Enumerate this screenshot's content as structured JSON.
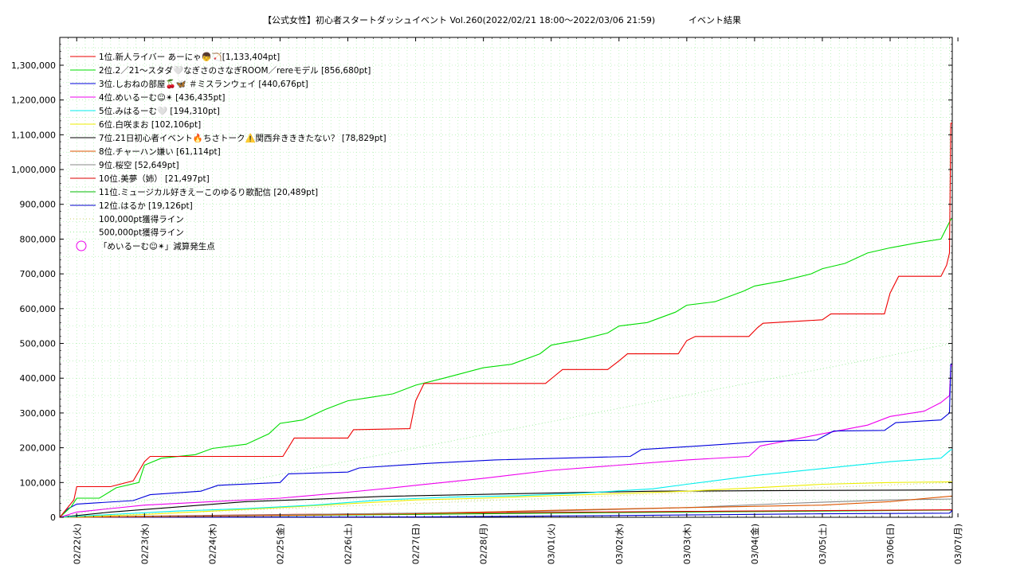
{
  "chart_data": {
    "type": "line",
    "title": "【公式女性】初心者スタートダッシュイベント Vol.260(2022/02/21 18:00～2022/03/06 21:59)",
    "subtitle": "イベント結果",
    "xlabel": "",
    "ylabel": "",
    "x_start": "2022-02-21 18:00",
    "x_end": "2022-03-06 22:00",
    "x_ticks": [
      "02/22(火)",
      "02/23(水)",
      "02/24(木)",
      "02/25(金)",
      "02/26(土)",
      "02/27(日)",
      "02/28(月)",
      "03/01(火)",
      "03/02(水)",
      "03/03(木)",
      "03/04(金)",
      "03/05(土)",
      "03/06(日)",
      "03/07(月)"
    ],
    "ylim": [
      0,
      1380000
    ],
    "y_ticks": [
      "0",
      "100,000",
      "200,000",
      "300,000",
      "400,000",
      "500,000",
      "600,000",
      "700,000",
      "800,000",
      "900,000",
      "1,000,000",
      "1,100,000",
      "1,200,000",
      "1,300,000"
    ],
    "y_tick_values": [
      0,
      100000,
      200000,
      300000,
      400000,
      500000,
      600000,
      700000,
      800000,
      900000,
      1000000,
      1100000,
      1200000,
      1300000
    ],
    "grid": true,
    "legend_position": "top-left",
    "series": [
      {
        "name": "1位.新人ライバー あーにゃ👦🏹[1,133,404pt]",
        "color": "#ee0000",
        "points": [
          [
            "2022-02-21 18:00",
            0
          ],
          [
            "2022-02-21 23:00",
            50000
          ],
          [
            "2022-02-22 00:00",
            88000
          ],
          [
            "2022-02-22 12:00",
            88000
          ],
          [
            "2022-02-22 20:00",
            105000
          ],
          [
            "2022-02-23 00:00",
            160000
          ],
          [
            "2022-02-23 02:00",
            175000
          ],
          [
            "2022-02-25 01:00",
            175000
          ],
          [
            "2022-02-25 05:00",
            228000
          ],
          [
            "2022-02-26 00:00",
            228000
          ],
          [
            "2022-02-26 02:00",
            252000
          ],
          [
            "2022-02-26 22:00",
            255000
          ],
          [
            "2022-02-27 00:00",
            335000
          ],
          [
            "2022-02-27 03:00",
            385000
          ],
          [
            "2022-02-28 22:00",
            385000
          ],
          [
            "2022-03-01 01:00",
            405000
          ],
          [
            "2022-03-01 04:00",
            425000
          ],
          [
            "2022-03-01 20:00",
            425000
          ],
          [
            "2022-03-02 00:00",
            450000
          ],
          [
            "2022-03-02 03:00",
            470000
          ],
          [
            "2022-03-02 21:00",
            470000
          ],
          [
            "2022-03-03 00:00",
            508000
          ],
          [
            "2022-03-03 03:00",
            520000
          ],
          [
            "2022-03-03 22:00",
            520000
          ],
          [
            "2022-03-04 01:00",
            545000
          ],
          [
            "2022-03-04 03:00",
            558000
          ],
          [
            "2022-03-05 00:00",
            568000
          ],
          [
            "2022-03-05 03:00",
            585000
          ],
          [
            "2022-03-05 22:00",
            585000
          ],
          [
            "2022-03-06 00:00",
            645000
          ],
          [
            "2022-03-06 03:00",
            693000
          ],
          [
            "2022-03-06 18:00",
            693000
          ],
          [
            "2022-03-06 20:00",
            725000
          ],
          [
            "2022-03-06 21:00",
            760000
          ],
          [
            "2022-03-06 21:30",
            1133404
          ],
          [
            "2022-03-06 22:00",
            1133404
          ]
        ]
      },
      {
        "name": "2位.2／21〜スタダ🤍なぎさのさなぎROOM／rereモデル [856,680pt]",
        "color": "#00dd00",
        "points": [
          [
            "2022-02-21 18:00",
            0
          ],
          [
            "2022-02-21 22:00",
            30000
          ],
          [
            "2022-02-22 00:00",
            55000
          ],
          [
            "2022-02-22 08:00",
            55000
          ],
          [
            "2022-02-22 14:00",
            85000
          ],
          [
            "2022-02-22 22:00",
            100000
          ],
          [
            "2022-02-23 00:00",
            150000
          ],
          [
            "2022-02-23 06:00",
            170000
          ],
          [
            "2022-02-23 18:00",
            180000
          ],
          [
            "2022-02-24 00:00",
            198000
          ],
          [
            "2022-02-24 12:00",
            210000
          ],
          [
            "2022-02-24 20:00",
            240000
          ],
          [
            "2022-02-25 00:00",
            270000
          ],
          [
            "2022-02-25 08:00",
            280000
          ],
          [
            "2022-02-25 16:00",
            310000
          ],
          [
            "2022-02-26 00:00",
            335000
          ],
          [
            "2022-02-26 08:00",
            345000
          ],
          [
            "2022-02-26 16:00",
            355000
          ],
          [
            "2022-02-27 00:00",
            380000
          ],
          [
            "2022-02-27 10:00",
            400000
          ],
          [
            "2022-02-28 00:00",
            430000
          ],
          [
            "2022-02-28 10:00",
            440000
          ],
          [
            "2022-02-28 20:00",
            470000
          ],
          [
            "2022-03-01 00:00",
            495000
          ],
          [
            "2022-03-01 10:00",
            510000
          ],
          [
            "2022-03-01 20:00",
            530000
          ],
          [
            "2022-03-02 00:00",
            550000
          ],
          [
            "2022-03-02 10:00",
            560000
          ],
          [
            "2022-03-02 20:00",
            590000
          ],
          [
            "2022-03-03 00:00",
            610000
          ],
          [
            "2022-03-03 10:00",
            620000
          ],
          [
            "2022-03-03 20:00",
            650000
          ],
          [
            "2022-03-04 00:00",
            665000
          ],
          [
            "2022-03-04 10:00",
            680000
          ],
          [
            "2022-03-04 20:00",
            700000
          ],
          [
            "2022-03-05 00:00",
            715000
          ],
          [
            "2022-03-05 08:00",
            730000
          ],
          [
            "2022-03-05 16:00",
            760000
          ],
          [
            "2022-03-06 00:00",
            775000
          ],
          [
            "2022-03-06 10:00",
            790000
          ],
          [
            "2022-03-06 18:00",
            800000
          ],
          [
            "2022-03-06 21:30",
            856680
          ],
          [
            "2022-03-06 22:00",
            856680
          ]
        ]
      },
      {
        "name": "3位.しおねの部屋🍒🦋 ＃ミスランウェイ [440,676pt]",
        "color": "#0000dd",
        "points": [
          [
            "2022-02-21 18:00",
            0
          ],
          [
            "2022-02-21 21:00",
            25000
          ],
          [
            "2022-02-22 00:00",
            38000
          ],
          [
            "2022-02-22 20:00",
            48000
          ],
          [
            "2022-02-23 02:00",
            65000
          ],
          [
            "2022-02-23 20:00",
            75000
          ],
          [
            "2022-02-24 02:00",
            92000
          ],
          [
            "2022-02-25 00:00",
            100000
          ],
          [
            "2022-02-25 03:00",
            125000
          ],
          [
            "2022-02-26 00:00",
            130000
          ],
          [
            "2022-02-26 04:00",
            142000
          ],
          [
            "2022-02-27 04:00",
            155000
          ],
          [
            "2022-02-28 04:00",
            165000
          ],
          [
            "2022-03-01 04:00",
            170000
          ],
          [
            "2022-03-02 04:00",
            175000
          ],
          [
            "2022-03-02 08:00",
            195000
          ],
          [
            "2022-03-03 04:00",
            205000
          ],
          [
            "2022-03-04 04:00",
            218000
          ],
          [
            "2022-03-04 22:00",
            222000
          ],
          [
            "2022-03-05 04:00",
            248000
          ],
          [
            "2022-03-05 22:00",
            250000
          ],
          [
            "2022-03-06 02:00",
            272000
          ],
          [
            "2022-03-06 18:00",
            280000
          ],
          [
            "2022-03-06 21:00",
            300000
          ],
          [
            "2022-03-06 21:30",
            440676
          ],
          [
            "2022-03-06 22:00",
            440676
          ]
        ]
      },
      {
        "name": "4位.めいるーむ☺✴ [436,435pt]",
        "color": "#ee00ee",
        "points": [
          [
            "2022-02-21 18:00",
            0
          ],
          [
            "2022-02-22 00:00",
            15000
          ],
          [
            "2022-02-23 00:00",
            35000
          ],
          [
            "2022-02-24 00:00",
            45000
          ],
          [
            "2022-02-25 00:00",
            55000
          ],
          [
            "2022-02-26 00:00",
            72000
          ],
          [
            "2022-02-26 16:00",
            85000
          ],
          [
            "2022-02-27 00:00",
            92000
          ],
          [
            "2022-02-28 00:00",
            112000
          ],
          [
            "2022-03-01 00:00",
            135000
          ],
          [
            "2022-03-02 00:00",
            150000
          ],
          [
            "2022-03-03 00:00",
            165000
          ],
          [
            "2022-03-03 22:00",
            175000
          ],
          [
            "2022-03-04 02:00",
            205000
          ],
          [
            "2022-03-05 00:00",
            240000
          ],
          [
            "2022-03-05 16:00",
            265000
          ],
          [
            "2022-03-06 00:00",
            290000
          ],
          [
            "2022-03-06 12:00",
            305000
          ],
          [
            "2022-03-06 18:00",
            330000
          ],
          [
            "2022-03-06 21:00",
            350000
          ],
          [
            "2022-03-06 21:30",
            436435
          ],
          [
            "2022-03-06 22:00",
            436435
          ]
        ]
      },
      {
        "name": "5位.みはるーむ🤍 [194,310pt]",
        "color": "#00eeee",
        "points": [
          [
            "2022-02-21 18:00",
            0
          ],
          [
            "2022-02-22 12:00",
            8000
          ],
          [
            "2022-02-23 12:00",
            18000
          ],
          [
            "2022-02-24 12:00",
            25000
          ],
          [
            "2022-02-25 12:00",
            35000
          ],
          [
            "2022-02-26 12:00",
            50000
          ],
          [
            "2022-02-27 12:00",
            58000
          ],
          [
            "2022-02-28 12:00",
            62000
          ],
          [
            "2022-03-01 12:00",
            70000
          ],
          [
            "2022-03-02 12:00",
            82000
          ],
          [
            "2022-03-03 00:00",
            95000
          ],
          [
            "2022-03-04 00:00",
            120000
          ],
          [
            "2022-03-05 00:00",
            140000
          ],
          [
            "2022-03-06 00:00",
            160000
          ],
          [
            "2022-03-06 18:00",
            170000
          ],
          [
            "2022-03-06 21:30",
            194310
          ],
          [
            "2022-03-06 22:00",
            194310
          ]
        ]
      },
      {
        "name": "6位.白咲まお [102,106pt]",
        "color": "#eeee00",
        "points": [
          [
            "2022-02-21 18:00",
            0
          ],
          [
            "2022-02-23 00:00",
            8000
          ],
          [
            "2022-02-25 00:00",
            28000
          ],
          [
            "2022-02-27 00:00",
            50000
          ],
          [
            "2022-02-28 00:00",
            55000
          ],
          [
            "2022-03-01 00:00",
            62000
          ],
          [
            "2022-03-02 00:00",
            68000
          ],
          [
            "2022-03-03 00:00",
            75000
          ],
          [
            "2022-03-04 00:00",
            85000
          ],
          [
            "2022-03-05 00:00",
            95000
          ],
          [
            "2022-03-06 00:00",
            100000
          ],
          [
            "2022-03-06 22:00",
            102106
          ]
        ]
      },
      {
        "name": "7位.21日初心者イベント🔥ちさトーク⚠️関西弁きききたない？ [78,829pt]",
        "color": "#000000",
        "points": [
          [
            "2022-02-21 18:00",
            0
          ],
          [
            "2022-02-22 12:00",
            15000
          ],
          [
            "2022-02-23 12:00",
            30000
          ],
          [
            "2022-02-24 12:00",
            45000
          ],
          [
            "2022-02-25 12:00",
            52000
          ],
          [
            "2022-02-26 12:00",
            60000
          ],
          [
            "2022-02-28 12:00",
            68000
          ],
          [
            "2022-03-02 12:00",
            75000
          ],
          [
            "2022-03-06 22:00",
            78829
          ]
        ]
      },
      {
        "name": "8位.チャーハン嫌い [61,114pt]",
        "color": "#dd5500",
        "points": [
          [
            "2022-02-21 18:00",
            0
          ],
          [
            "2022-02-24 00:00",
            3000
          ],
          [
            "2022-02-27 00:00",
            10000
          ],
          [
            "2022-03-01 00:00",
            20000
          ],
          [
            "2022-03-03 00:00",
            28000
          ],
          [
            "2022-03-05 00:00",
            35000
          ],
          [
            "2022-03-06 00:00",
            45000
          ],
          [
            "2022-03-06 22:00",
            61114
          ]
        ]
      },
      {
        "name": "9位.桜空 [52,649pt]",
        "color": "#888888",
        "points": [
          [
            "2022-02-21 18:00",
            0
          ],
          [
            "2022-02-24 00:00",
            5000
          ],
          [
            "2022-02-27 00:00",
            12000
          ],
          [
            "2022-03-01 00:00",
            18000
          ],
          [
            "2022-03-03 00:00",
            28000
          ],
          [
            "2022-03-04 12:00",
            40000
          ],
          [
            "2022-03-06 00:00",
            50000
          ],
          [
            "2022-03-06 22:00",
            52649
          ]
        ]
      },
      {
        "name": "10位.美夢（姉） [21,497pt]",
        "color": "#dd0000",
        "points": [
          [
            "2022-02-21 18:00",
            0
          ],
          [
            "2022-02-25 00:00",
            8000
          ],
          [
            "2022-02-28 00:00",
            13000
          ],
          [
            "2022-03-03 00:00",
            17000
          ],
          [
            "2022-03-06 22:00",
            21497
          ]
        ]
      },
      {
        "name": "11位.ミュージカル好きえーこのゆるり歌配信 [20,489pt]",
        "color": "#00bb00",
        "points": [
          [
            "2022-02-21 18:00",
            0
          ],
          [
            "2022-02-25 00:00",
            5000
          ],
          [
            "2022-02-28 00:00",
            10000
          ],
          [
            "2022-03-03 00:00",
            15000
          ],
          [
            "2022-03-06 22:00",
            20489
          ]
        ]
      },
      {
        "name": "12位.はるか [19,126pt]",
        "color": "#0000cc",
        "points": [
          [
            "2022-02-21 18:00",
            0
          ],
          [
            "2022-02-27 00:00",
            1000
          ],
          [
            "2022-03-02 00:00",
            5000
          ],
          [
            "2022-03-05 00:00",
            10000
          ],
          [
            "2022-03-06 21:00",
            12000
          ],
          [
            "2022-03-06 22:00",
            19126
          ]
        ]
      }
    ],
    "reference_lines": [
      {
        "name": "100,000pt獲得ライン",
        "color": "#cccc66",
        "target": 100000
      },
      {
        "name": "500,000pt獲得ライン",
        "color": "#99ee99",
        "target": 500000
      }
    ],
    "marker_legend": {
      "name": "「めいるーむ☺✴」減算発生点",
      "color": "#ee00ee"
    }
  }
}
